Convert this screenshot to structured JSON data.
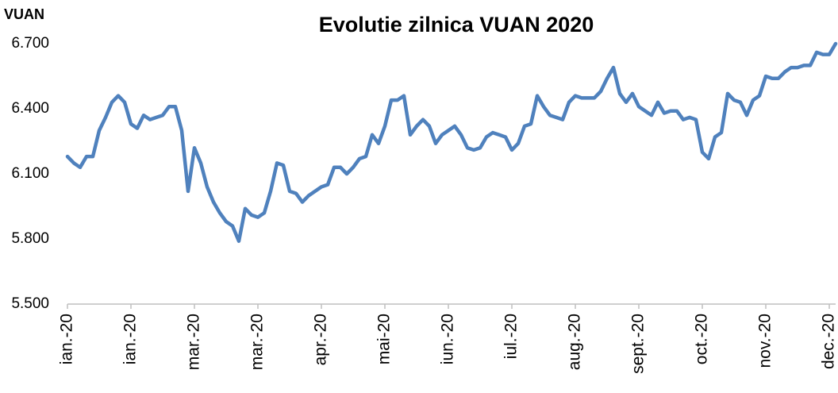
{
  "chart_data": {
    "type": "line",
    "title": "Evolutie zilnica VUAN 2020",
    "y_label": "VUAN",
    "categories": [
      "ian.-20",
      null,
      null,
      null,
      null,
      null,
      null,
      null,
      null,
      null,
      "ian.-20",
      null,
      null,
      null,
      null,
      null,
      null,
      null,
      null,
      null,
      "mar.-20",
      null,
      null,
      null,
      null,
      null,
      null,
      null,
      null,
      null,
      "mar.-20",
      null,
      null,
      null,
      null,
      null,
      null,
      null,
      null,
      null,
      "apr.-20",
      null,
      null,
      null,
      null,
      null,
      null,
      null,
      null,
      null,
      "mai-20",
      null,
      null,
      null,
      null,
      null,
      null,
      null,
      null,
      null,
      "iun.-20",
      null,
      null,
      null,
      null,
      null,
      null,
      null,
      null,
      null,
      "iul.-20",
      null,
      null,
      null,
      null,
      null,
      null,
      null,
      null,
      null,
      "aug.-20",
      null,
      null,
      null,
      null,
      null,
      null,
      null,
      null,
      null,
      "sept.-20",
      null,
      null,
      null,
      null,
      null,
      null,
      null,
      null,
      null,
      "oct.-20",
      null,
      null,
      null,
      null,
      null,
      null,
      null,
      null,
      null,
      "nov.-20",
      null,
      null,
      null,
      null,
      null,
      null,
      null,
      null,
      null,
      "dec.-20",
      null
    ],
    "series": [
      {
        "name": "VUAN",
        "color": "#4f81bd",
        "values": [
          6.18,
          6.15,
          6.13,
          6.18,
          6.18,
          6.3,
          6.36,
          6.43,
          6.46,
          6.43,
          6.33,
          6.31,
          6.37,
          6.35,
          6.36,
          6.37,
          6.41,
          6.41,
          6.3,
          6.02,
          6.22,
          6.15,
          6.04,
          5.97,
          5.92,
          5.88,
          5.86,
          5.79,
          5.94,
          5.91,
          5.9,
          5.92,
          6.02,
          6.15,
          6.14,
          6.02,
          6.01,
          5.97,
          6.0,
          6.02,
          6.04,
          6.05,
          6.13,
          6.13,
          6.1,
          6.13,
          6.17,
          6.18,
          6.28,
          6.24,
          6.32,
          6.44,
          6.44,
          6.46,
          6.28,
          6.32,
          6.35,
          6.32,
          6.24,
          6.28,
          6.3,
          6.32,
          6.28,
          6.22,
          6.21,
          6.22,
          6.27,
          6.29,
          6.28,
          6.27,
          6.21,
          6.24,
          6.32,
          6.33,
          6.46,
          6.41,
          6.37,
          6.36,
          6.35,
          6.43,
          6.46,
          6.45,
          6.45,
          6.45,
          6.48,
          6.54,
          6.59,
          6.47,
          6.43,
          6.47,
          6.41,
          6.39,
          6.37,
          6.43,
          6.38,
          6.39,
          6.39,
          6.35,
          6.36,
          6.35,
          6.2,
          6.17,
          6.27,
          6.29,
          6.47,
          6.44,
          6.43,
          6.37,
          6.44,
          6.46,
          6.55,
          6.54,
          6.54,
          6.57,
          6.59,
          6.59,
          6.6,
          6.6,
          6.66,
          6.65,
          6.65,
          6.7
        ]
      }
    ],
    "ylim": [
      5.5,
      6.7
    ],
    "yticks": [
      {
        "value": 5.5,
        "label": "5.500"
      },
      {
        "value": 5.8,
        "label": "5.800"
      },
      {
        "value": 6.1,
        "label": "6.100"
      },
      {
        "value": 6.4,
        "label": "6.400"
      },
      {
        "value": 6.7,
        "label": "6.700"
      }
    ],
    "grid": false,
    "legend": false
  }
}
